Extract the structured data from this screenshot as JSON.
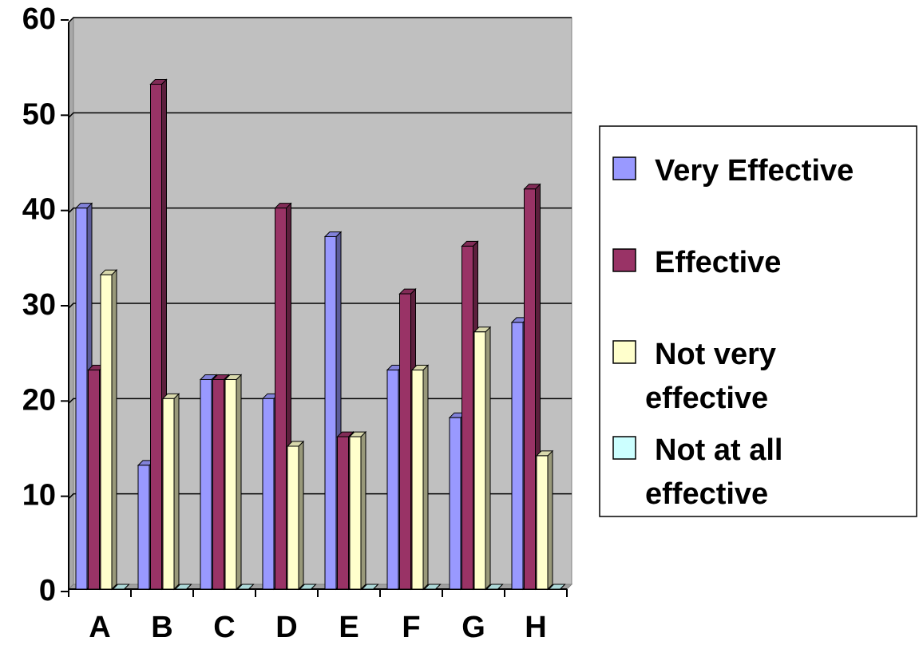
{
  "chart_data": {
    "type": "bar",
    "categories": [
      "A",
      "B",
      "C",
      "D",
      "E",
      "F",
      "G",
      "H"
    ],
    "series": [
      {
        "name": "Very Effective",
        "values": [
          40,
          13,
          22,
          20,
          37,
          23,
          18,
          28
        ],
        "color": "#9999ff",
        "legend_lines": [
          "Very Effective"
        ]
      },
      {
        "name": "Effective",
        "values": [
          23,
          53,
          22,
          40,
          16,
          31,
          36,
          42
        ],
        "color": "#993366",
        "legend_lines": [
          "Effective"
        ]
      },
      {
        "name": "Not very effective",
        "values": [
          33,
          20,
          22,
          15,
          16,
          23,
          27,
          14
        ],
        "color": "#ffffcc",
        "legend_lines": [
          "Not very",
          "effective"
        ]
      },
      {
        "name": "Not at all effective",
        "values": [
          0,
          0,
          0,
          0,
          0,
          0,
          0,
          0
        ],
        "color": "#ccffff",
        "legend_lines": [
          "Not at all",
          "effective"
        ]
      }
    ],
    "ylim": [
      0,
      60
    ],
    "yticks": [
      0,
      10,
      20,
      30,
      40,
      50,
      60
    ],
    "grid": true,
    "plot_background": "#c0c0c0",
    "legend_position": "right",
    "style": "3d-column"
  }
}
